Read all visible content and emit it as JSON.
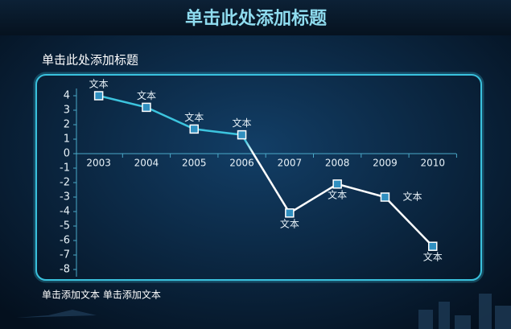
{
  "header": {
    "title": "单击此处添加标题"
  },
  "subtitle": "单击此处添加标题",
  "chart_data": {
    "type": "line",
    "categories": [
      "2003",
      "2004",
      "2005",
      "2006",
      "2007",
      "2008",
      "2009",
      "2010"
    ],
    "series": [
      {
        "name": null,
        "color": "#3cc4de",
        "values": [
          4,
          3.2,
          1.7,
          1.3,
          -4.1,
          -2.1,
          -3.0,
          -6.4
        ]
      }
    ],
    "point_labels": [
      "文本",
      "文本",
      "文本",
      "文本",
      "文本",
      "文本",
      "文本",
      "文本"
    ],
    "ylim": [
      -8.5,
      4.5
    ],
    "yticks": [
      4,
      3,
      2,
      1,
      0,
      -1,
      -2,
      -3,
      -4,
      -5,
      -6,
      -7,
      -8
    ]
  },
  "footer": {
    "text": "单击添加文本 单击添加文本"
  }
}
